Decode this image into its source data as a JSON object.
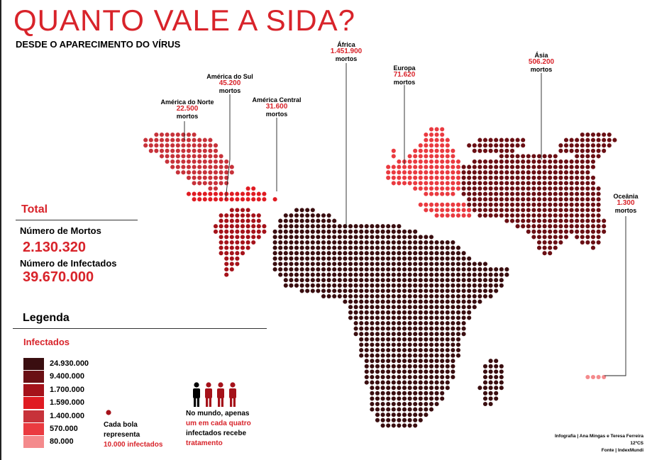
{
  "header": {
    "title": "QUANTO VALE A SIDA?",
    "subtitle": "DESDE O APARECIMENTO DO VÍRUS"
  },
  "total": {
    "heading": "Total",
    "deaths_label": "Número de Mortos",
    "deaths_value": "2.130.320",
    "infected_label": "Número de Infectados",
    "infected_value": "39.670.000"
  },
  "legend": {
    "heading": "Legenda",
    "subheading": "Infectados",
    "items": [
      {
        "value": "24.930.000",
        "color": "#3a0e10"
      },
      {
        "value": "9.400.000",
        "color": "#6a0f14"
      },
      {
        "value": "1.700.000",
        "color": "#a5121a"
      },
      {
        "value": "1.590.000",
        "color": "#e01b22"
      },
      {
        "value": "1.400.000",
        "color": "#c7323a"
      },
      {
        "value": "570.000",
        "color": "#ea3a40"
      },
      {
        "value": "80.000",
        "color": "#f48a8c"
      }
    ],
    "dot_note": {
      "line1": "Cada bola",
      "line2": "representa",
      "line3": "10.000 infectados"
    },
    "treatment_note": {
      "line1": "No mundo, apenas",
      "line2": "um em cada quatro",
      "line3": "infectados recebe",
      "line4": "tratamento"
    }
  },
  "regions": [
    {
      "id": "america-norte",
      "name": "América do Norte",
      "value": "22.500",
      "unit": "mortos",
      "color": "#c7323a"
    },
    {
      "id": "america-sul",
      "name": "América do Sul",
      "value": "45.200",
      "unit": "mortos",
      "color": "#a5121a"
    },
    {
      "id": "america-central",
      "name": "América Central",
      "value": "31.600",
      "unit": "mortos",
      "color": "#e01b22"
    },
    {
      "id": "africa",
      "name": "África",
      "value": "1.451.900",
      "unit": "mortos",
      "color": "#3a0e10"
    },
    {
      "id": "europa",
      "name": "Europa",
      "value": "71.620",
      "unit": "mortos",
      "color": "#ea3a40"
    },
    {
      "id": "asia",
      "name": "Ásia",
      "value": "506.200",
      "unit": "mortos",
      "color": "#6a0f14"
    },
    {
      "id": "oceania",
      "name": "Oceânia",
      "value": "1.300",
      "unit": "mortos",
      "color": "#f48a8c"
    }
  ],
  "credits": {
    "line1": "Infografia | Ana Mingas e Teresa Ferreira",
    "line2": "12ºCS",
    "line3": "Fonte | IndexMundi"
  }
}
